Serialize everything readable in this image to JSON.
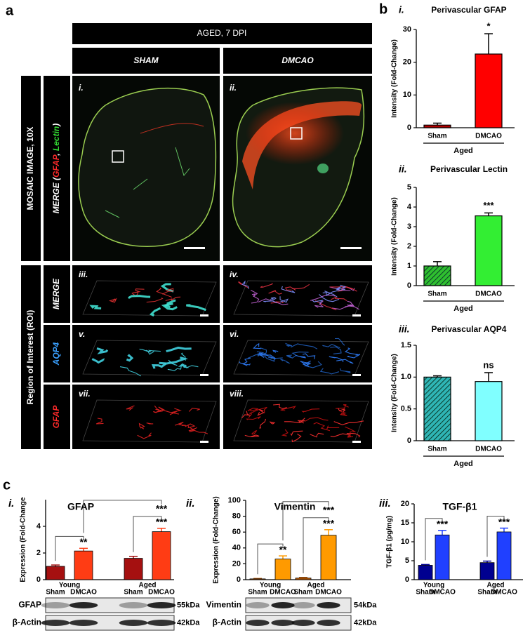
{
  "figure": {
    "panel_labels": [
      "a",
      "b",
      "c"
    ],
    "panel_a": {
      "header": "AGED, 7 DPI",
      "columns": [
        "SHAM",
        "DMCAO"
      ],
      "mosaic_label": "MOSAIC IMAGE, 10X",
      "merge_label": [
        "MERGE (",
        "GFAP",
        ", ",
        "Lectin",
        ")"
      ],
      "roi_label": "Region of Interest (ROI)",
      "row_labels": [
        "MERGE",
        "AQP4",
        "GFAP"
      ],
      "image_labels": [
        "i.",
        "ii.",
        "iii.",
        "iv.",
        "v.",
        "vi.",
        "vii.",
        "viii."
      ]
    }
  },
  "chart_data": [
    {
      "type": "bar",
      "roman": "i.",
      "title": "Perivascular GFAP",
      "ylabel": "Intensity (Fold-Change)",
      "categories": [
        "Sham",
        "DMCAO"
      ],
      "group_label": "Aged",
      "values": [
        0.8,
        22.5
      ],
      "errors": [
        0.6,
        6.2
      ],
      "colors": [
        "#b00000",
        "#ff0000"
      ],
      "hatch": false,
      "annotation": "*",
      "ylim": [
        0,
        30
      ],
      "yticks": [
        0,
        10,
        20,
        30
      ]
    },
    {
      "type": "bar",
      "roman": "ii.",
      "title": "Perivascular Lectin",
      "ylabel": "Intensity (Fold-Change)",
      "categories": [
        "Sham",
        "DMCAO"
      ],
      "group_label": "Aged",
      "values": [
        1.0,
        3.55
      ],
      "errors": [
        0.22,
        0.15
      ],
      "colors": [
        "#2fbf2f",
        "#33ee33"
      ],
      "hatch": true,
      "annotation": "***",
      "ylim": [
        0,
        5
      ],
      "yticks": [
        0,
        1,
        2,
        3,
        4,
        5
      ]
    },
    {
      "type": "bar",
      "roman": "iii.",
      "title": "Perivascular AQP4",
      "ylabel": "Intensity (Fold-Change)",
      "categories": [
        "Sham",
        "DMCAO"
      ],
      "group_label": "Aged",
      "values": [
        1.0,
        0.93
      ],
      "errors": [
        0.02,
        0.14
      ],
      "colors": [
        "#2fb5b5",
        "#80ffff"
      ],
      "hatch": true,
      "annotation": "ns",
      "ylim": [
        0,
        1.5
      ],
      "yticks": [
        0,
        0.5,
        {
          "value": 1,
          "label": "1.0"
        },
        1.5
      ]
    },
    {
      "type": "grouped_bar",
      "roman": "i.",
      "title": "GFAP",
      "ylabel": "Expression (Fold-Change",
      "categories": [
        "Young",
        "Aged"
      ],
      "series": [
        {
          "name": "Sham",
          "color": "#a51010",
          "values": [
            1.0,
            1.6
          ],
          "errors": [
            0.1,
            0.15
          ]
        },
        {
          "name": "DMCAO",
          "color": "#ff3c14",
          "values": [
            2.15,
            3.6
          ],
          "errors": [
            0.2,
            0.25
          ],
          "significance": [
            "**",
            "***"
          ]
        }
      ],
      "comparison": "***",
      "ylim": [
        0,
        6
      ],
      "yticks": [
        0,
        2,
        4
      ],
      "blot": [
        {
          "label": "GFAP",
          "size": "55kDa"
        },
        {
          "label": "β-Actin",
          "size": "42kDa"
        }
      ]
    },
    {
      "type": "grouped_bar",
      "roman": "ii.",
      "title": "Vimentin",
      "ylabel": "Expression (Fold-Change)",
      "categories": [
        "Young",
        "Aged"
      ],
      "series": [
        {
          "name": "Sham",
          "color": "#c05a00",
          "values": [
            1,
            2
          ],
          "errors": [
            0.5,
            0.8
          ]
        },
        {
          "name": "DMCAO",
          "color": "#ff9a00",
          "values": [
            26,
            56
          ],
          "errors": [
            4,
            7
          ],
          "significance": [
            "**",
            "***"
          ]
        }
      ],
      "comparison": "***",
      "ylim": [
        0,
        100
      ],
      "yticks": [
        0,
        20,
        40,
        60,
        80,
        100
      ],
      "blot": [
        {
          "label": "Vimentin",
          "size": "54kDa"
        },
        {
          "label": "β-Actin",
          "size": "42kDa"
        }
      ]
    },
    {
      "type": "grouped_bar",
      "roman": "iii.",
      "title": "TGF-β1",
      "ylabel": "TGF-β1 (pg/mg)",
      "categories": [
        "Young",
        "Aged"
      ],
      "series": [
        {
          "name": "Sham",
          "color": "#000090",
          "values": [
            3.8,
            4.5
          ],
          "errors": [
            0.2,
            0.4
          ]
        },
        {
          "name": "DMCAO",
          "color": "#2040ff",
          "values": [
            11.8,
            12.6
          ],
          "errors": [
            1.2,
            1.0
          ],
          "significance": [
            "***",
            "***"
          ]
        }
      ],
      "ylim": [
        0,
        20
      ],
      "yticks": [
        0,
        5,
        10,
        15,
        20
      ]
    }
  ]
}
